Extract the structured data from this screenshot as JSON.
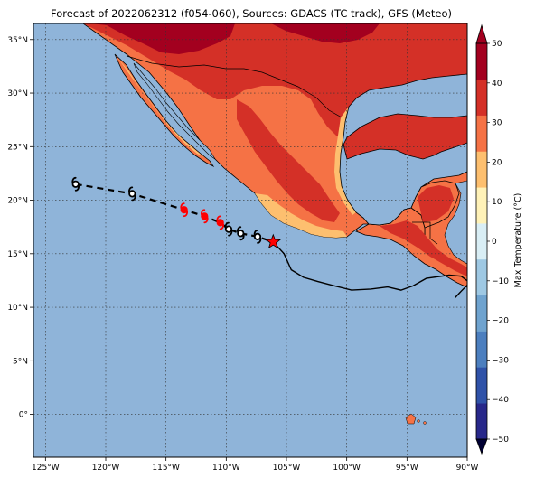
{
  "title": "Forecast of 2022062312 (f054-060), Sources: GDACS (TC track), GFS (Meteo)",
  "map": {
    "lon_range": [
      -126,
      -90
    ],
    "lat_range": [
      -4,
      36.5
    ],
    "lon_ticks": [
      {
        "value": -125,
        "label": "125°W"
      },
      {
        "value": -120,
        "label": "120°W"
      },
      {
        "value": -115,
        "label": "115°W"
      },
      {
        "value": -110,
        "label": "110°W"
      },
      {
        "value": -105,
        "label": "105°W"
      },
      {
        "value": -100,
        "label": "100°W"
      },
      {
        "value": -95,
        "label": "95°W"
      },
      {
        "value": -90,
        "label": "90°W"
      }
    ],
    "lat_ticks": [
      {
        "value": 35,
        "label": "35°N"
      },
      {
        "value": 30,
        "label": "30°N"
      },
      {
        "value": 25,
        "label": "25°N"
      },
      {
        "value": 20,
        "label": "20°N"
      },
      {
        "value": 15,
        "label": "15°N"
      },
      {
        "value": 10,
        "label": "10°N"
      },
      {
        "value": 5,
        "label": "5°N"
      },
      {
        "value": 0,
        "label": "0°"
      }
    ],
    "gridlines": true,
    "ocean_color": "#8fb4d9"
  },
  "colorbar": {
    "label": "Max Temperature (°C)",
    "ticks": [
      -50,
      -40,
      -30,
      -20,
      -10,
      0,
      10,
      20,
      30,
      40,
      50
    ],
    "tick_labels": [
      "−50",
      "−40",
      "−30",
      "−20",
      "−10",
      "0",
      "10",
      "20",
      "30",
      "40",
      "50"
    ],
    "colors": [
      "#28288a",
      "#2f52a8",
      "#4c7fbf",
      "#6fa3cf",
      "#9ec8e3",
      "#d9eef5",
      "#fff2b8",
      "#fdbf6f",
      "#f57245",
      "#d43027",
      "#a3001f"
    ]
  },
  "track": {
    "forecast_points": [
      {
        "lon": -122.5,
        "lat": 21.5,
        "color": "#000000"
      },
      {
        "lon": -117.8,
        "lat": 20.6,
        "color": "#000000"
      },
      {
        "lon": -113.5,
        "lat": 19.1,
        "color": "#ff0000"
      },
      {
        "lon": -111.8,
        "lat": 18.5,
        "color": "#ff0000"
      },
      {
        "lon": -110.5,
        "lat": 17.9,
        "color": "#ff0000"
      },
      {
        "lon": -109.8,
        "lat": 17.3,
        "color": "#000000"
      },
      {
        "lon": -108.8,
        "lat": 16.9,
        "color": "#000000"
      },
      {
        "lon": -107.4,
        "lat": 16.6,
        "color": "#000000"
      }
    ],
    "current_position": {
      "lon": -106.1,
      "lat": 16.1,
      "marker": "star",
      "color": "#ff0000"
    },
    "past_track": [
      [
        -106.1,
        16.1
      ],
      [
        -105.2,
        15.0
      ],
      [
        -104.6,
        13.5
      ],
      [
        -103.6,
        12.8
      ],
      [
        -102.4,
        12.4
      ],
      [
        -101.0,
        12.0
      ],
      [
        -99.6,
        11.6
      ],
      [
        -98.0,
        11.7
      ],
      [
        -96.6,
        11.9
      ],
      [
        -95.5,
        11.6
      ],
      [
        -94.5,
        12.0
      ],
      [
        -93.4,
        12.7
      ],
      [
        -91.5,
        13.0
      ],
      [
        -90.5,
        12.9
      ],
      [
        -89.8,
        12.3
      ],
      [
        -90.5,
        11.5
      ],
      [
        -91.0,
        10.9
      ]
    ]
  }
}
